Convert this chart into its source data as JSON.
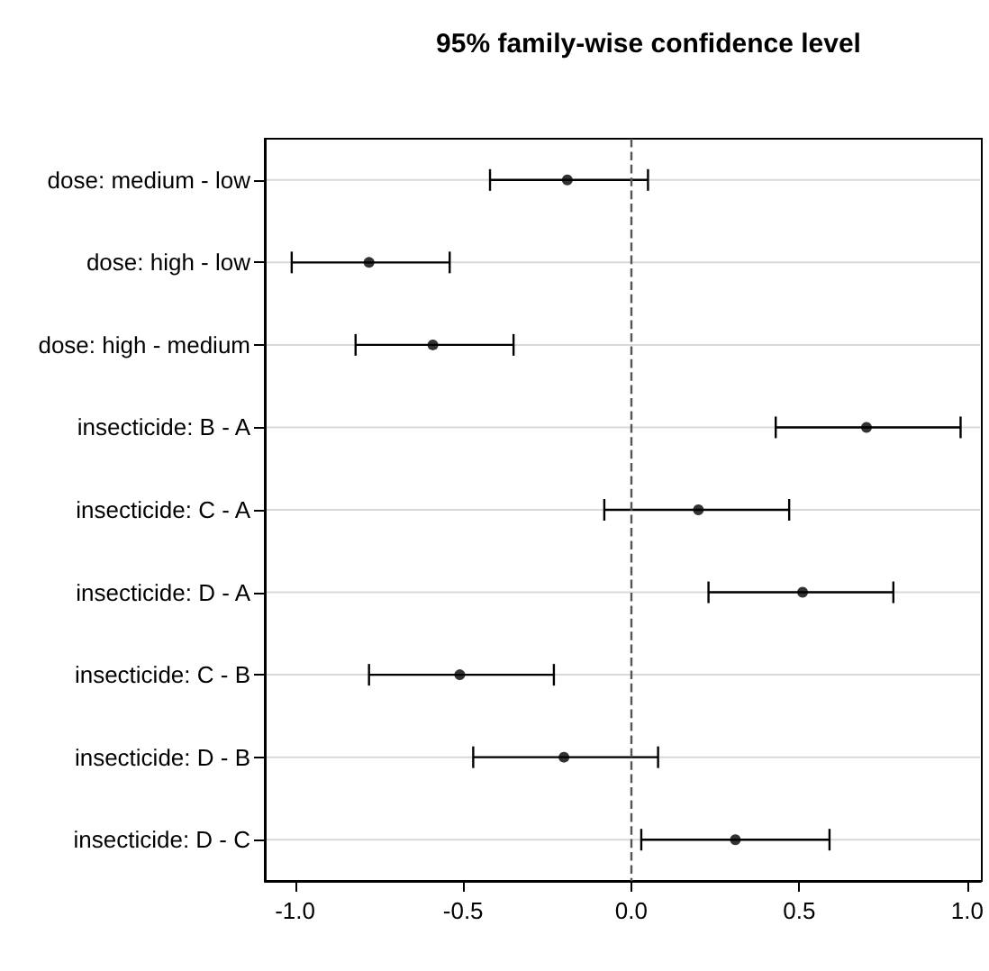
{
  "chart_data": {
    "type": "scatter",
    "title": "95% family-wise confidence level",
    "orientation": "horizontal",
    "categories": [
      "dose: medium - low",
      "dose: high - low",
      "dose: high - medium",
      "insecticide: B - A",
      "insecticide: C - A",
      "insecticide: D - A",
      "insecticide: C - B",
      "insecticide: D - B",
      "insecticide: D - C"
    ],
    "values": [
      -0.19,
      -0.78,
      -0.59,
      0.7,
      0.2,
      0.51,
      -0.51,
      -0.2,
      0.31
    ],
    "errors": [
      [
        -0.42,
        0.05
      ],
      [
        -1.01,
        -0.54
      ],
      [
        -0.82,
        -0.35
      ],
      [
        0.43,
        0.98
      ],
      [
        -0.08,
        0.47
      ],
      [
        0.23,
        0.78
      ],
      [
        -0.78,
        -0.23
      ],
      [
        -0.47,
        0.08
      ],
      [
        0.03,
        0.59
      ]
    ],
    "color": "#000000",
    "marker": "circle",
    "xlim": [
      -1.09,
      1.04
    ],
    "xticks": [
      {
        "value": -1,
        "label": "-1.0"
      },
      {
        "value": -0.5,
        "label": "-0.5"
      },
      {
        "value": 0,
        "label": "0.0"
      },
      {
        "value": 0.5,
        "label": "0.5"
      },
      {
        "value": 1,
        "label": "1.0"
      }
    ],
    "ref_lines": [
      {
        "axis": "x",
        "value": 0,
        "color": "#555555",
        "line_style": "dashed"
      }
    ],
    "grid": "y"
  }
}
